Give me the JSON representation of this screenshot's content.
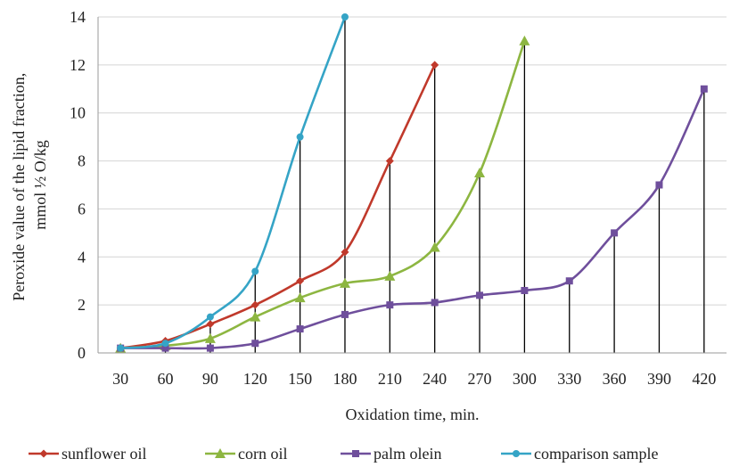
{
  "chart_data": {
    "type": "line",
    "title": "",
    "xlabel": "Oxidation time, min.",
    "ylabel_lines": [
      "Peroxide value of the lipid fraction,",
      "mmol ½ O/kg"
    ],
    "ylim": [
      0,
      14
    ],
    "yticks": [
      0,
      2,
      4,
      6,
      8,
      10,
      12,
      14
    ],
    "categories": [
      "30",
      "60",
      "90",
      "120",
      "150",
      "180",
      "210",
      "240",
      "270",
      "300",
      "330",
      "360",
      "390",
      "420"
    ],
    "grid": "horizontal",
    "legend": "bottom",
    "series": [
      {
        "name": "sunflower oil",
        "color": "#c0392b",
        "marker": "diamond",
        "values": [
          0.2,
          0.5,
          1.2,
          2.0,
          3.0,
          4.2,
          8.0,
          12.0,
          null,
          null,
          null,
          null,
          null,
          null
        ]
      },
      {
        "name": "corn oil",
        "color": "#8db641",
        "marker": "triangle",
        "values": [
          0.2,
          0.3,
          0.6,
          1.5,
          2.3,
          2.9,
          3.2,
          4.4,
          7.5,
          13.0,
          null,
          null,
          null,
          null
        ]
      },
      {
        "name": "palm olein",
        "color": "#6f4f9c",
        "marker": "square",
        "values": [
          0.2,
          0.2,
          0.2,
          0.4,
          1.0,
          1.6,
          2.0,
          2.1,
          2.4,
          2.6,
          3.0,
          5.0,
          7.0,
          11.0
        ]
      },
      {
        "name": "comparison sample",
        "color": "#35a4c6",
        "marker": "circle",
        "values": [
          0.2,
          0.4,
          1.5,
          3.4,
          9.0,
          14.0,
          null,
          null,
          null,
          null,
          null,
          null,
          null,
          null
        ]
      }
    ]
  }
}
